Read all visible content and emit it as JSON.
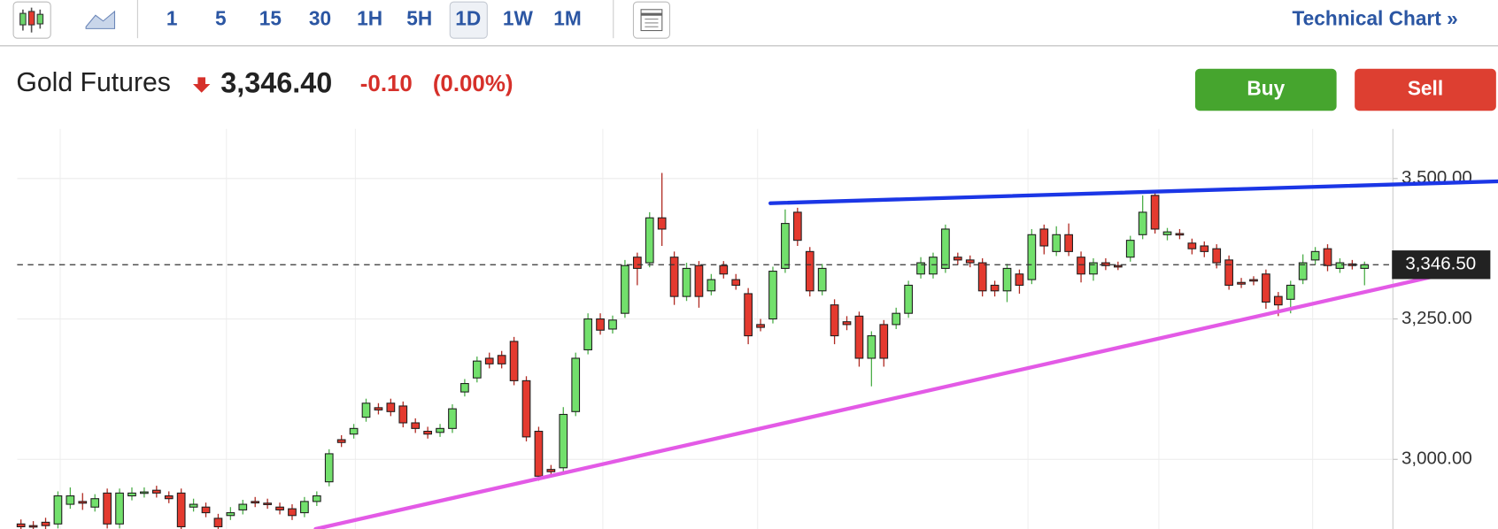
{
  "toolbar": {
    "intervals": [
      {
        "label": "1"
      },
      {
        "label": "5"
      },
      {
        "label": "15"
      },
      {
        "label": "30"
      },
      {
        "label": "1H"
      },
      {
        "label": "5H"
      },
      {
        "label": "1D",
        "selected": true
      },
      {
        "label": "1W"
      },
      {
        "label": "1M"
      }
    ],
    "link": "Technical Chart »"
  },
  "header": {
    "instrument": "Gold Futures",
    "price": "3,346.40",
    "change": "-0.10",
    "change_pct": "(0.00%)",
    "buttons": [
      "Buy",
      "Sell"
    ]
  },
  "chart_data": {
    "type": "candlestick",
    "up_color": "#72e06c",
    "down_color": "#e43a2f",
    "xlim": [
      -1.7,
      111.3
    ],
    "ylim": [
      2876,
      3588
    ],
    "yticks": [
      {
        "value": 3000,
        "label": "3,000.00"
      },
      {
        "value": 3250,
        "label": "3,250.00"
      },
      {
        "value": 3500,
        "label": "3,500.00"
      }
    ],
    "grid": true,
    "last_price": {
      "value": 3346.5,
      "label": "3,346.50"
    },
    "open": [
      2885,
      2882,
      2888,
      2885,
      2920,
      2925,
      2915,
      2940,
      2885,
      2935,
      2940,
      2945,
      2935,
      2940,
      2915,
      2915,
      2895,
      2900,
      2910,
      2925,
      2922,
      2915,
      2912,
      2905,
      2925,
      2960,
      3035,
      3045,
      3075,
      3092,
      3100,
      3095,
      3065,
      3050,
      3048,
      3055,
      3120,
      3145,
      3180,
      3185,
      3210,
      3140,
      3050,
      2982,
      2985,
      3085,
      3195,
      3250,
      3232,
      3260,
      3360,
      3350,
      3430,
      3360,
      3290,
      3345,
      3300,
      3345,
      3320,
      3295,
      3240,
      3250,
      3340,
      3440,
      3370,
      3300,
      3275,
      3245,
      3255,
      3180,
      3240,
      3240,
      3260,
      3330,
      3330,
      3340,
      3360,
      3355,
      3350,
      3310,
      3300,
      3330,
      3320,
      3410,
      3370,
      3400,
      3360,
      3330,
      3350,
      3345,
      3360,
      3400,
      3470,
      3400,
      3402,
      3385,
      3380,
      3375,
      3355,
      3315,
      3320,
      3330,
      3290,
      3285,
      3320,
      3355,
      3375,
      3340,
      3348,
      3340
    ],
    "high": [
      2893,
      2890,
      2896,
      2943,
      2950,
      2940,
      2938,
      2948,
      2948,
      2950,
      2950,
      2953,
      2943,
      2948,
      2930,
      2923,
      2903,
      2915,
      2928,
      2933,
      2930,
      2923,
      2920,
      2933,
      2943,
      3018,
      3043,
      3063,
      3108,
      3100,
      3108,
      3103,
      3073,
      3058,
      3063,
      3098,
      3143,
      3183,
      3190,
      3193,
      3218,
      3148,
      3058,
      2990,
      3093,
      3190,
      3260,
      3260,
      3256,
      3355,
      3368,
      3440,
      3510,
      3370,
      3350,
      3353,
      3330,
      3353,
      3330,
      3305,
      3250,
      3343,
      3445,
      3448,
      3378,
      3348,
      3285,
      3255,
      3263,
      3228,
      3248,
      3270,
      3318,
      3360,
      3368,
      3418,
      3368,
      3363,
      3358,
      3318,
      3348,
      3338,
      3410,
      3418,
      3415,
      3420,
      3370,
      3358,
      3358,
      3352,
      3398,
      3470,
      3478,
      3412,
      3410,
      3393,
      3388,
      3383,
      3363,
      3323,
      3326,
      3338,
      3298,
      3318,
      3365,
      3378,
      3383,
      3358,
      3355,
      3352
    ],
    "low": [
      2872,
      2874,
      2876,
      2877,
      2912,
      2910,
      2907,
      2877,
      2877,
      2927,
      2932,
      2932,
      2922,
      2872,
      2907,
      2897,
      2872,
      2892,
      2902,
      2915,
      2912,
      2902,
      2892,
      2897,
      2917,
      2952,
      3022,
      3037,
      3067,
      3080,
      3077,
      3057,
      3047,
      3037,
      3040,
      3047,
      3112,
      3137,
      3162,
      3162,
      3132,
      3032,
      2962,
      2970,
      2977,
      3077,
      3187,
      3222,
      3224,
      3252,
      3310,
      3342,
      3380,
      3275,
      3282,
      3270,
      3292,
      3322,
      3302,
      3205,
      3228,
      3242,
      3332,
      3380,
      3290,
      3292,
      3205,
      3230,
      3165,
      3130,
      3165,
      3232,
      3252,
      3322,
      3322,
      3332,
      3347,
      3342,
      3290,
      3290,
      3280,
      3295,
      3312,
      3365,
      3362,
      3362,
      3315,
      3318,
      3337,
      3337,
      3352,
      3392,
      3402,
      3390,
      3392,
      3365,
      3360,
      3340,
      3302,
      3305,
      3310,
      3268,
      3255,
      3260,
      3312,
      3347,
      3335,
      3332,
      3338,
      3310
    ],
    "close": [
      2880,
      2880,
      2882,
      2935,
      2935,
      2922,
      2930,
      2885,
      2940,
      2940,
      2942,
      2940,
      2930,
      2880,
      2920,
      2905,
      2880,
      2905,
      2920,
      2923,
      2920,
      2910,
      2900,
      2925,
      2935,
      3010,
      3030,
      3055,
      3100,
      3088,
      3085,
      3065,
      3055,
      3045,
      3055,
      3090,
      3135,
      3175,
      3170,
      3170,
      3140,
      3040,
      2970,
      2978,
      3080,
      3180,
      3250,
      3230,
      3248,
      3345,
      3340,
      3430,
      3410,
      3290,
      3340,
      3290,
      3320,
      3330,
      3310,
      3220,
      3235,
      3335,
      3420,
      3390,
      3300,
      3340,
      3220,
      3240,
      3180,
      3220,
      3180,
      3260,
      3310,
      3350,
      3360,
      3410,
      3355,
      3350,
      3300,
      3300,
      3340,
      3310,
      3400,
      3380,
      3400,
      3370,
      3330,
      3350,
      3345,
      3343,
      3390,
      3440,
      3410,
      3405,
      3400,
      3375,
      3370,
      3350,
      3310,
      3312,
      3318,
      3280,
      3275,
      3310,
      3350,
      3370,
      3345,
      3350,
      3345,
      3346.4
    ],
    "trendlines": [
      {
        "color": "#1b36e6",
        "x": [
          60.8,
          119.8
        ],
        "values": [
          3456,
          3495
        ]
      },
      {
        "color": "#e35ae6",
        "x": [
          23.9,
          116.9
        ],
        "values": [
          2876,
          3337
        ]
      }
    ]
  }
}
